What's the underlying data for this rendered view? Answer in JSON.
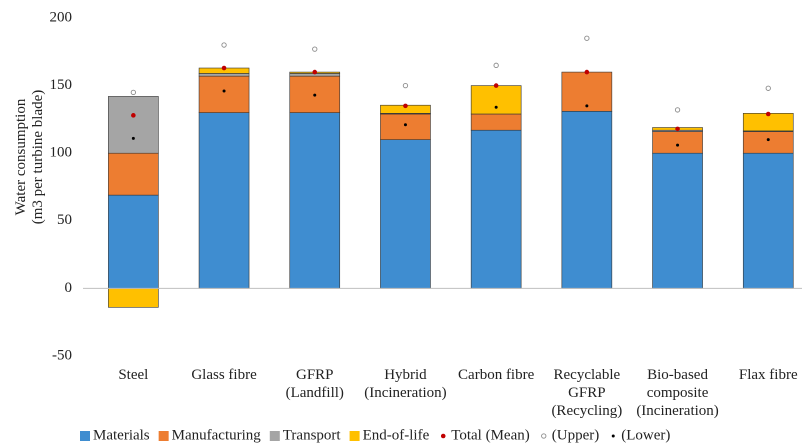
{
  "chart_data": {
    "type": "stacked-bar",
    "ylabel": [
      "Water consumption",
      "(m3 per turbine blade)"
    ],
    "categories": [
      [
        "Steel"
      ],
      [
        "Glass fibre"
      ],
      [
        "GFRP",
        "(Landfill)"
      ],
      [
        "Hybrid",
        "(Incineration)"
      ],
      [
        "Carbon fibre"
      ],
      [
        "Recyclable",
        "GFRP",
        "(Recycling)"
      ],
      [
        "Bio-based",
        "composite",
        "(Incineration)"
      ],
      [
        "Flax fibre"
      ]
    ],
    "series": [
      {
        "name": "Materials",
        "color": "#3f8dd0",
        "values": [
          69,
          130,
          130,
          110,
          117,
          131,
          100,
          100
        ]
      },
      {
        "name": "Manufacturing",
        "color": "#ed7d31",
        "values": [
          31,
          27,
          27,
          19,
          12,
          29,
          16,
          16
        ]
      },
      {
        "name": "Transport",
        "color": "#a5a5a5",
        "values": [
          42,
          2,
          2,
          0.5,
          0,
          0,
          1,
          0.5
        ]
      },
      {
        "name": "End-of-life",
        "color": "#ffc000",
        "values": [
          -14,
          4,
          1,
          6,
          21,
          0,
          2,
          13
        ]
      }
    ],
    "points": [
      {
        "name": "Total (Mean)",
        "color": "#c00000",
        "marker": "dot",
        "values": [
          128,
          163,
          160,
          135,
          150,
          160,
          118,
          129
        ]
      },
      {
        "name": "(Upper)",
        "color": "#8c8c8c",
        "marker": "ring",
        "values": [
          145,
          180,
          177,
          150,
          165,
          185,
          132,
          148
        ]
      },
      {
        "name": "(Lower)",
        "color": "#000000",
        "marker": "small-dot",
        "values": [
          111,
          146,
          143,
          121,
          134,
          135,
          106,
          110
        ]
      }
    ],
    "ylim": [
      -50,
      200
    ],
    "yticks": [
      -50,
      0,
      50,
      100,
      150,
      200
    ],
    "grid": false
  }
}
